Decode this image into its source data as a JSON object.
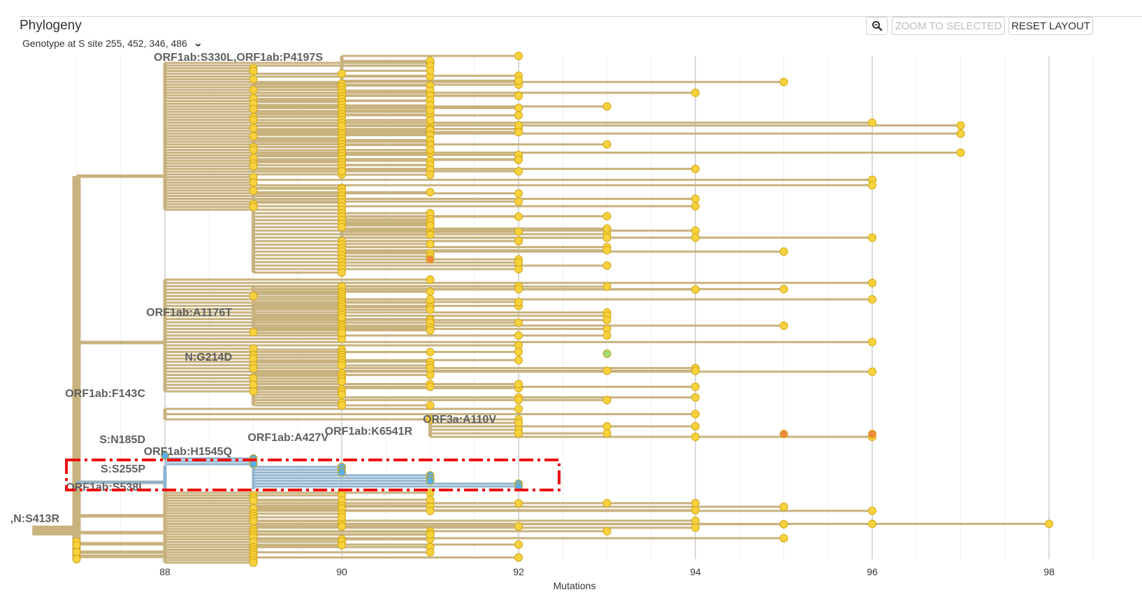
{
  "panel": {
    "title": "Phylogeny",
    "color_by_label": "Genotype at S site 255, 452, 346, 486"
  },
  "toolbar": {
    "zoom_icon": "magnifier-minus-icon",
    "zoom_selected_label": "ZOOM TO SELECTED",
    "reset_layout_label": "RESET LAYOUT"
  },
  "colors": {
    "branch": "#c8b27e",
    "tip": "#f7d23c",
    "tip_stroke": "#d4a617",
    "selected_branch": "#8fb3cf",
    "selected_tip": "#5aaee6",
    "highlight_box": "#ee1111",
    "green_tip": "#9ddc78",
    "orange_tip": "#f08a3c"
  },
  "chart_data": {
    "type": "phylogenetic_tree",
    "xlabel": "Mutations",
    "xlim": [
      86.5,
      99
    ],
    "x_ticks": [
      "88",
      "90",
      "92",
      "94",
      "96",
      "98"
    ],
    "grid": true,
    "branch_labels": [
      {
        "text": "ORF1ab:S330L,ORF1ab:P4197S",
        "x": 88
      },
      {
        "text": "ORF1ab:A1176T",
        "x": 88
      },
      {
        "text": "N:G214D",
        "x": 89
      },
      {
        "text": "ORF1ab:F143C",
        "x": 88
      },
      {
        "text": "S:N185D",
        "x": 88
      },
      {
        "text": "ORF1ab:A427V",
        "x": 90
      },
      {
        "text": "ORF1ab:K6541R",
        "x": 91
      },
      {
        "text": "ORF3a:A110V",
        "x": 92
      },
      {
        "text": "ORF1ab:H1545Q",
        "x": 89
      },
      {
        "text": "S:S255P",
        "x": 88
      },
      {
        "text": "ORF1ab:S538L",
        "x": 88
      },
      {
        "text": ",N:S413R",
        "x": 87
      }
    ],
    "selected_clade_tip_mutations": [
      88,
      89,
      89,
      89,
      90,
      90,
      90,
      91,
      91,
      91,
      92,
      92
    ],
    "max_tip_mutations": 99
  }
}
